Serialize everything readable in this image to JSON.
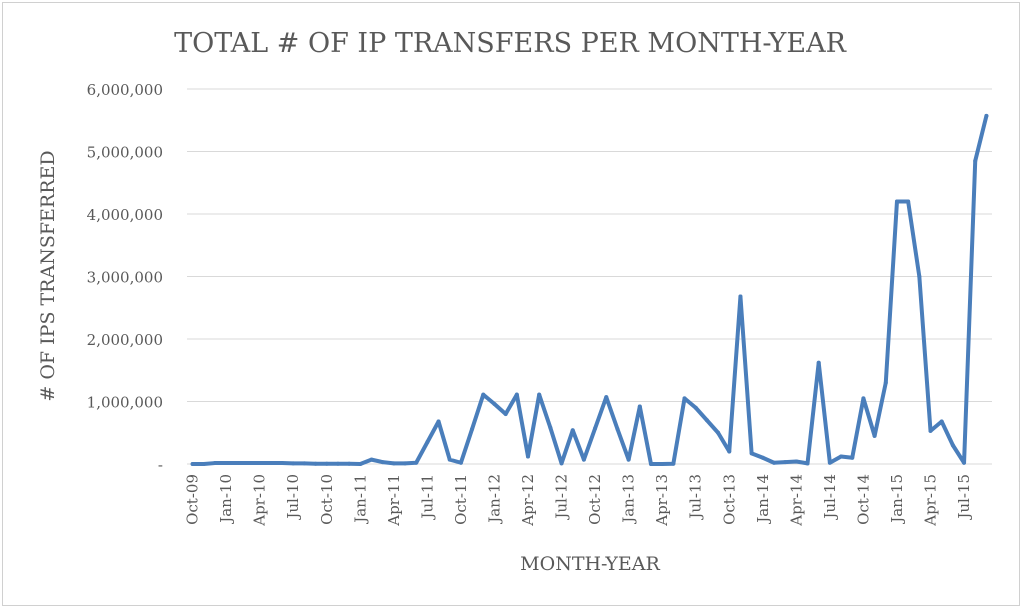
{
  "chart_data": {
    "type": "line",
    "title": "TOTAL # OF IP TRANSFERS PER MONTH-YEAR",
    "xlabel": "MONTH-YEAR",
    "ylabel": "# OF IPS TRANSFERRED",
    "ylim": [
      0,
      6000000
    ],
    "y_ticks": [
      0,
      1000000,
      2000000,
      3000000,
      4000000,
      5000000,
      6000000
    ],
    "y_tick_labels": [
      "-",
      "1,000,000",
      "2,000,000",
      "3,000,000",
      "4,000,000",
      "5,000,000",
      "6,000,000"
    ],
    "x_tick_labels": [
      "Oct-09",
      "Jan-10",
      "Apr-10",
      "Jul-10",
      "Oct-10",
      "Jan-11",
      "Apr-11",
      "Jul-11",
      "Oct-11",
      "Jan-12",
      "Apr-12",
      "Jul-12",
      "Oct-12",
      "Jan-13",
      "Apr-13",
      "Jul-13",
      "Oct-13",
      "Jan-14",
      "Apr-14",
      "Jul-14",
      "Oct-14",
      "Jan-15",
      "Apr-15",
      "Jul-15"
    ],
    "grid": true,
    "line_color": "#4a7ebb",
    "series": [
      {
        "x": [
          "Oct-09",
          "Nov-09",
          "Dec-09",
          "Jan-10",
          "Feb-10",
          "Mar-10",
          "Apr-10",
          "May-10",
          "Jun-10",
          "Jul-10",
          "Aug-10",
          "Sep-10",
          "Oct-10",
          "Nov-10",
          "Dec-10",
          "Jan-11",
          "Feb-11",
          "Mar-11",
          "Apr-11",
          "May-11",
          "Jun-11",
          "Jul-11",
          "Aug-11",
          "Sep-11",
          "Oct-11",
          "Nov-11",
          "Dec-11",
          "Jan-12",
          "Feb-12",
          "Mar-12",
          "Apr-12",
          "May-12",
          "Jun-12",
          "Jul-12",
          "Aug-12",
          "Sep-12",
          "Oct-12",
          "Nov-12",
          "Dec-12",
          "Jan-13",
          "Feb-13",
          "Mar-13",
          "Apr-13",
          "May-13",
          "Jun-13",
          "Jul-13",
          "Aug-13",
          "Sep-13",
          "Oct-13",
          "Nov-13",
          "Dec-13",
          "Jan-14",
          "Feb-14",
          "Mar-14",
          "Apr-14",
          "May-14",
          "Jun-14",
          "Jul-14",
          "Aug-14",
          "Sep-14",
          "Oct-14",
          "Nov-14",
          "Dec-14",
          "Jan-15",
          "Feb-15",
          "Mar-15",
          "Apr-15",
          "May-15",
          "Jun-15",
          "Jul-15",
          "Aug-15",
          "Sep-15"
        ],
        "values": [
          0,
          0,
          15000,
          15000,
          15000,
          15000,
          15000,
          15000,
          15000,
          10000,
          10000,
          5000,
          5000,
          5000,
          5000,
          0,
          70000,
          30000,
          10000,
          10000,
          20000,
          350000,
          680000,
          70000,
          20000,
          560000,
          1110000,
          960000,
          800000,
          1110000,
          120000,
          1110000,
          580000,
          10000,
          540000,
          70000,
          570000,
          1070000,
          560000,
          70000,
          920000,
          0,
          0,
          5000,
          1050000,
          900000,
          700000,
          500000,
          200000,
          2680000,
          170000,
          100000,
          20000,
          30000,
          40000,
          10000,
          1620000,
          20000,
          120000,
          100000,
          1050000,
          450000,
          1300000,
          4200000,
          4200000,
          3000000,
          530000,
          680000,
          300000,
          20000,
          4850000,
          5570000
        ]
      }
    ]
  }
}
